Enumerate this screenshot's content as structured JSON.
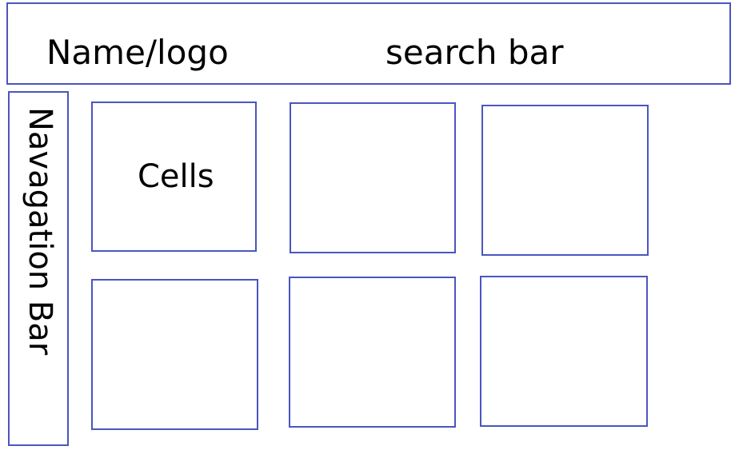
{
  "header": {
    "logo_label": "Name/logo",
    "search_label": "search bar"
  },
  "navigation": {
    "label": "Navagation Bar"
  },
  "cells": {
    "label": "Cells"
  },
  "colors": {
    "border": "#4b55c0",
    "text": "#000000",
    "background": "#ffffff"
  }
}
